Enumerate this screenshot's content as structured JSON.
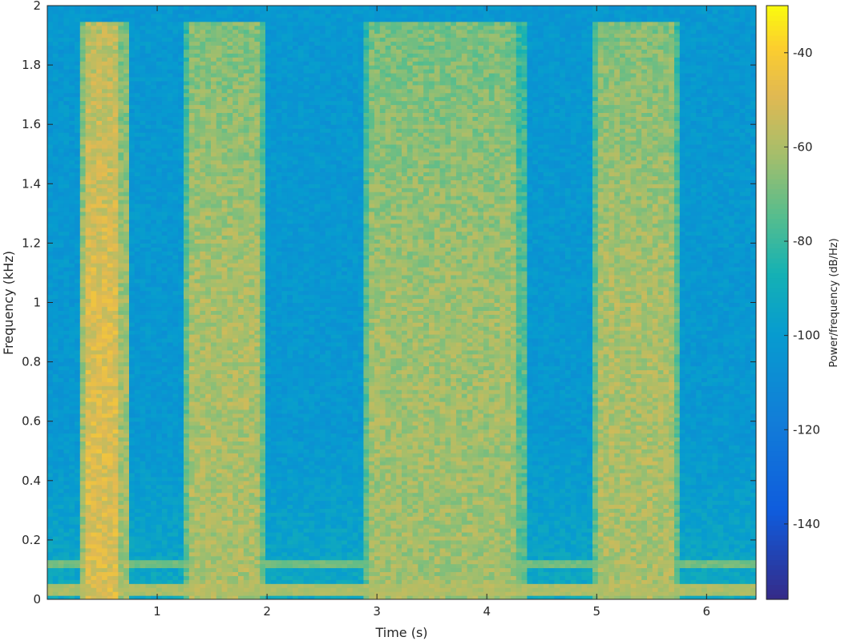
{
  "chart_data": {
    "type": "heatmap",
    "subtype": "spectrogram",
    "title": "",
    "xlabel": "Time (s)",
    "ylabel": "Frequency (kHz)",
    "colorbar_label": "Power/frequency (dB/Hz)",
    "colormap": "parula",
    "xlim": [
      0,
      6.45
    ],
    "ylim": [
      0,
      2
    ],
    "clim": [
      -156,
      -30
    ],
    "xticks": [
      1,
      2,
      3,
      4,
      5,
      6
    ],
    "xtick_labels": [
      "1",
      "2",
      "3",
      "4",
      "5",
      "6"
    ],
    "yticks": [
      0,
      0.2,
      0.4,
      0.6,
      0.8,
      1,
      1.2,
      1.4,
      1.6,
      1.8,
      2
    ],
    "ytick_labels": [
      "0",
      "0.2",
      "0.4",
      "0.6",
      "0.8",
      "1",
      "1.2",
      "1.4",
      "1.6",
      "1.8",
      "2"
    ],
    "cticks": [
      -140,
      -120,
      -100,
      -80,
      -60,
      -40
    ],
    "ctick_labels": [
      "-140",
      "-120",
      "-100",
      "-80",
      "-60",
      "-40"
    ],
    "background_db": -102,
    "constant_tones_khz": [
      {
        "freq": 0.03,
        "db": -60
      },
      {
        "freq": 0.12,
        "db": -70
      }
    ],
    "bursts": [
      {
        "t_start": 0.28,
        "t_end": 0.72,
        "f_max": 1.95,
        "db": -50
      },
      {
        "t_start": 1.25,
        "t_end": 2.0,
        "f_max": 1.95,
        "db": -60
      },
      {
        "t_start": 2.88,
        "t_end": 4.35,
        "f_max": 1.95,
        "db": -62
      },
      {
        "t_start": 4.95,
        "t_end": 5.75,
        "f_max": 1.95,
        "db": -60
      }
    ]
  }
}
